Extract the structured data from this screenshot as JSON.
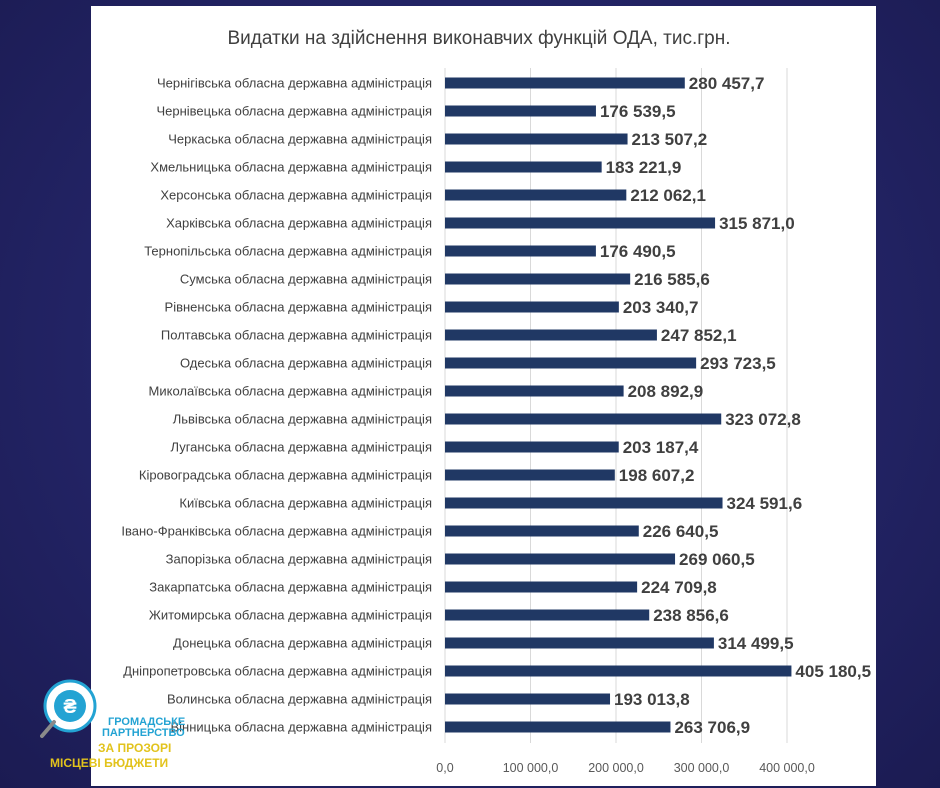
{
  "chart_data": {
    "type": "bar",
    "orientation": "horizontal",
    "title": "Видатки на здійснення виконавчих функцій ОДА, тис.грн.",
    "categories": [
      "Чернігівська обласна державна адміністрація",
      "Чернівецька обласна державна адміністрація",
      "Черкаська обласна державна адміністрація",
      "Хмельницька обласна державна адміністрація",
      "Херсонська обласна державна адміністрація",
      "Харківська обласна державна адміністрація",
      "Тернопільська обласна державна адміністрація",
      "Сумська обласна державна адміністрація",
      "Рівненська обласна державна адміністрація",
      "Полтавська обласна державна адміністрація",
      "Одеська обласна державна адміністрація",
      "Миколаївська обласна державна адміністрація",
      "Львівська обласна державна адміністрація",
      "Луганська обласна державна адміністрація",
      "Кіровоградська обласна державна адміністрація",
      "Київська обласна державна адміністрація",
      "Івано-Франківська обласна державна адміністрація",
      "Запорізька обласна державна адміністрація",
      "Закарпатська обласна державна адміністрація",
      "Житомирська обласна державна адміністрація",
      "Донецька обласна державна адміністрація",
      "Дніпропетровська обласна державна адміністрація",
      "Волинська обласна державна адміністрація",
      "Вінницька обласна державна адміністрація"
    ],
    "values": [
      280457.7,
      176539.5,
      213507.2,
      183221.9,
      212062.1,
      315871.0,
      176490.5,
      216585.6,
      203340.7,
      247852.1,
      293723.5,
      208892.9,
      323072.8,
      203187.4,
      198607.2,
      324591.6,
      226640.5,
      269060.5,
      224709.8,
      238856.6,
      314499.5,
      405180.5,
      193013.8,
      263706.9
    ],
    "value_labels": [
      "280 457,7",
      "176 539,5",
      "213 507,2",
      "183 221,9",
      "212 062,1",
      "315 871,0",
      "176 490,5",
      "216 585,6",
      "203 340,7",
      "247 852,1",
      "293 723,5",
      "208 892,9",
      "323 072,8",
      "203 187,4",
      "198 607,2",
      "324 591,6",
      "226 640,5",
      "269 060,5",
      "224 709,8",
      "238 856,6",
      "314 499,5",
      "405 180,5",
      "193 013,8",
      "263 706,9"
    ],
    "xlim": [
      0,
      400000
    ],
    "x_ticks": [
      0,
      100000,
      200000,
      300000,
      400000
    ],
    "x_tick_labels": [
      "0,0",
      "100 000,0",
      "200 000,0",
      "300 000,0",
      "400 000,0"
    ],
    "grid": true,
    "bar_color": "#203864",
    "xlabel": "",
    "ylabel": ""
  },
  "logo": {
    "line1": "ГРОМАДСЬКЕ",
    "line2": "ПАРТНЕРСТВО",
    "line3": "ЗА ПРОЗОРІ",
    "line4": "МІСЦЕВІ БЮДЖЕТИ",
    "emblem_symbol": "₴",
    "accent_blue": "#23a3d3",
    "accent_yellow": "#e2c31c"
  }
}
